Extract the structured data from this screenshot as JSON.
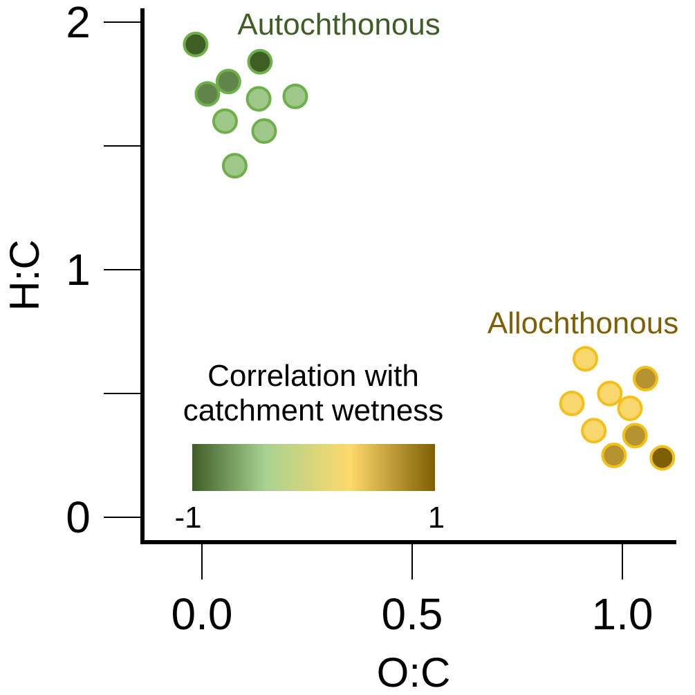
{
  "chart_data": {
    "type": "scatter",
    "xlabel": "O:C",
    "ylabel": "H:C",
    "xlim": [
      -0.15,
      1.12
    ],
    "ylim": [
      -0.1,
      2.1
    ],
    "x_ticks": [
      0.0,
      0.5,
      1.0
    ],
    "x_tick_labels": [
      "0.0",
      "0.5",
      "1.0"
    ],
    "y_ticks": [
      0,
      1,
      2
    ],
    "y_tick_labels": [
      "0",
      "1",
      "2"
    ],
    "y_minor_ticks": [
      0.5,
      1.5
    ],
    "grid": false,
    "groups": [
      {
        "label": "Autochthonous",
        "label_color": "#3e5e26",
        "stroke": "#6db04a",
        "points": [
          {
            "x": -0.015,
            "y": 1.91,
            "c": -1.0
          },
          {
            "x": 0.138,
            "y": 1.84,
            "c": -1.0
          },
          {
            "x": 0.063,
            "y": 1.76,
            "c": -0.8
          },
          {
            "x": 0.013,
            "y": 1.71,
            "c": -0.8
          },
          {
            "x": 0.135,
            "y": 1.69,
            "c": -0.45
          },
          {
            "x": 0.222,
            "y": 1.7,
            "c": -0.45
          },
          {
            "x": 0.055,
            "y": 1.6,
            "c": -0.45
          },
          {
            "x": 0.148,
            "y": 1.56,
            "c": -0.45
          },
          {
            "x": 0.078,
            "y": 1.42,
            "c": -0.45
          }
        ]
      },
      {
        "label": "Allochthonous",
        "label_color": "#7f5f05",
        "stroke": "#f3c01a",
        "points": [
          {
            "x": 0.912,
            "y": 0.64,
            "c": 0.25
          },
          {
            "x": 1.055,
            "y": 0.56,
            "c": 0.7
          },
          {
            "x": 0.97,
            "y": 0.5,
            "c": 0.25
          },
          {
            "x": 0.88,
            "y": 0.46,
            "c": 0.25
          },
          {
            "x": 1.018,
            "y": 0.44,
            "c": 0.25
          },
          {
            "x": 0.932,
            "y": 0.35,
            "c": 0.25
          },
          {
            "x": 1.03,
            "y": 0.33,
            "c": 0.7
          },
          {
            "x": 0.98,
            "y": 0.25,
            "c": 0.7
          },
          {
            "x": 1.095,
            "y": 0.24,
            "c": 1.0
          }
        ]
      }
    ],
    "colorbar": {
      "title_lines": [
        "Correlation with",
        "catchment wetness"
      ],
      "min_label": "-1",
      "max_label": "1",
      "stops": [
        "#3e5e26",
        "#a7d192",
        "#fed96b",
        "#7f5f05"
      ],
      "stop_positions": [
        0,
        0.3,
        0.65,
        1
      ],
      "placement": "bottom-center"
    }
  }
}
